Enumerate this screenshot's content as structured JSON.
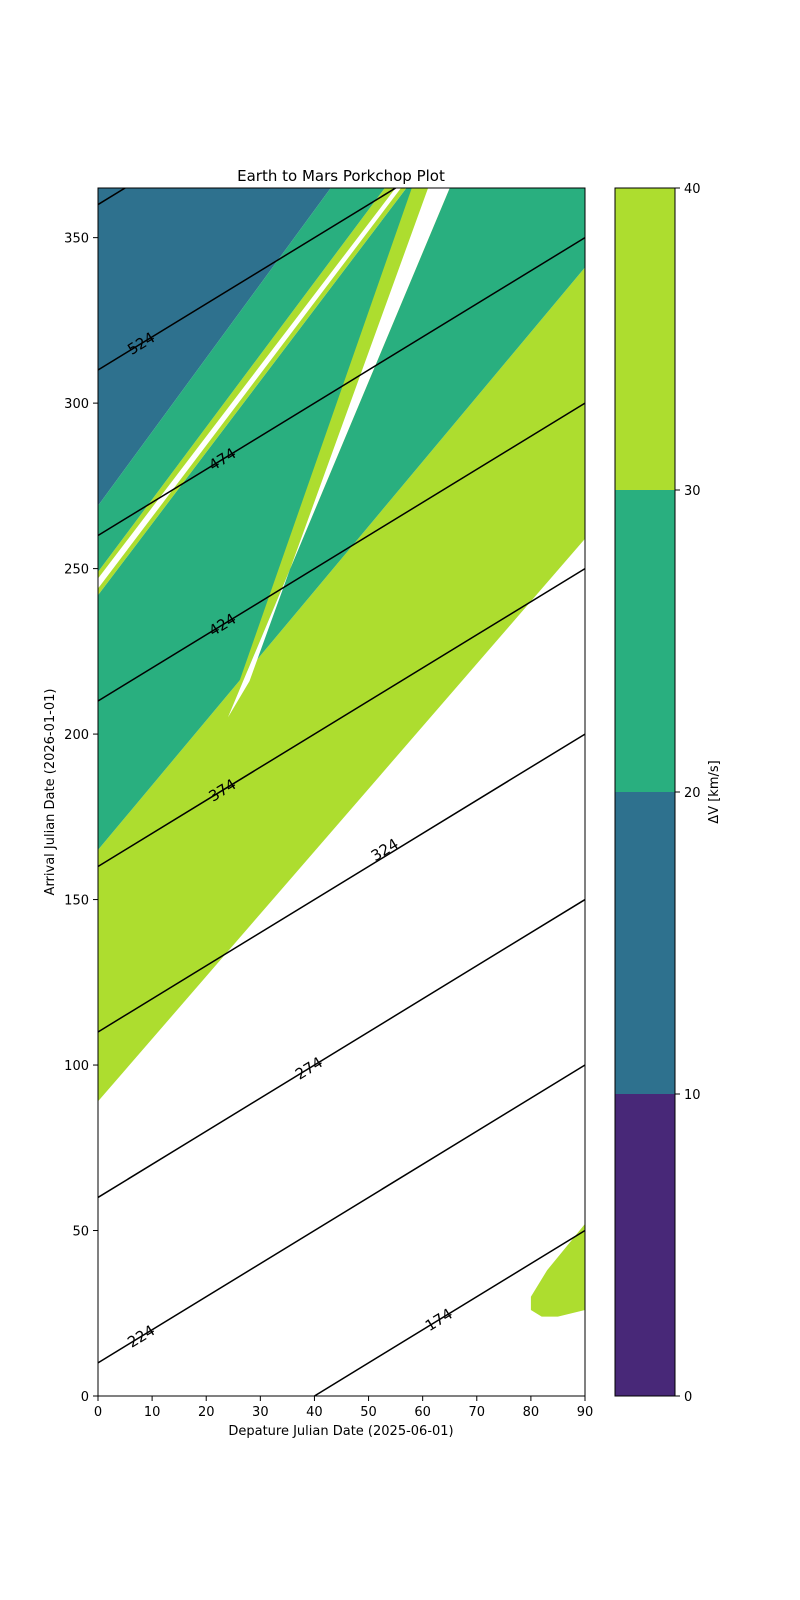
{
  "chart_data": {
    "type": "contour",
    "title": "Earth to Mars Porkchop Plot",
    "xlabel": "Depature Julian Date (2025-06-01)",
    "ylabel": "Arrival Julian Date (2026-01-01)",
    "xlim": [
      0,
      90
    ],
    "ylim": [
      0,
      365
    ],
    "xticks": [
      0,
      10,
      20,
      30,
      40,
      50,
      60,
      70,
      80,
      90
    ],
    "yticks": [
      0,
      50,
      100,
      150,
      200,
      250,
      300,
      350
    ],
    "grid": false,
    "colorbar": {
      "label": "ΔV [km/s]",
      "ticks": [
        0,
        10,
        20,
        30,
        40
      ],
      "levels": [
        {
          "from": 0,
          "to": 10,
          "color": "#482878"
        },
        {
          "from": 10,
          "to": 20,
          "color": "#2e718e"
        },
        {
          "from": 20,
          "to": 30,
          "color": "#29af7f"
        },
        {
          "from": 30,
          "to": 40,
          "color": "#addd2f"
        }
      ]
    },
    "filled_regions": [
      {
        "level": "30-40",
        "color": "#addd2f",
        "points": [
          [
            0,
            89
          ],
          [
            0,
            165
          ],
          [
            90,
            341
          ],
          [
            90,
            259
          ]
        ]
      },
      {
        "level": "20-30",
        "color": "#29af7f",
        "points": [
          [
            0,
            165
          ],
          [
            0,
            242
          ],
          [
            57,
            365
          ],
          [
            90,
            365
          ],
          [
            90,
            341
          ]
        ]
      },
      {
        "level": "10-20",
        "color": "#2e718e",
        "points": [
          [
            0,
            269
          ],
          [
            0,
            365
          ],
          [
            43,
            365
          ]
        ]
      },
      {
        "level": "30-40",
        "color": "#addd2f",
        "points": [
          [
            0,
            242
          ],
          [
            0,
            249
          ],
          [
            53,
            365
          ],
          [
            57,
            365
          ]
        ]
      },
      {
        "level": "none",
        "color": "#ffffff",
        "points": [
          [
            0,
            244
          ],
          [
            0,
            247
          ],
          [
            55,
            365
          ],
          [
            56,
            365
          ]
        ]
      },
      {
        "level": "20-30",
        "color": "#29af7f",
        "points": [
          [
            0,
            249
          ],
          [
            0,
            269
          ],
          [
            43,
            365
          ],
          [
            53,
            365
          ]
        ]
      },
      {
        "level": "30-40",
        "color": "#addd2f",
        "points": [
          [
            24,
            205
          ],
          [
            24,
            206
          ],
          [
            58,
            365
          ],
          [
            65,
            365
          ]
        ]
      },
      {
        "level": "none",
        "color": "#ffffff",
        "points": [
          [
            24,
            205
          ],
          [
            28,
            216
          ],
          [
            61,
            365
          ],
          [
            65,
            365
          ]
        ]
      },
      {
        "level": "30-40",
        "color": "#addd2f",
        "points": [
          [
            90,
            26
          ],
          [
            90,
            52
          ],
          [
            87,
            46
          ],
          [
            83,
            38
          ],
          [
            80,
            30
          ],
          [
            80,
            26
          ],
          [
            82,
            24
          ],
          [
            85,
            24
          ]
        ]
      }
    ],
    "contour_lines": [
      {
        "label": "174",
        "x": [
          40,
          90
        ],
        "y": [
          0,
          50
        ],
        "label_at": [
          63,
          23
        ]
      },
      {
        "label": "224",
        "x": [
          0,
          90
        ],
        "y": [
          10,
          100
        ],
        "label_at": [
          8,
          18
        ]
      },
      {
        "label": "274",
        "x": [
          0,
          90
        ],
        "y": [
          60,
          150
        ],
        "label_at": [
          39,
          99
        ]
      },
      {
        "label": "324",
        "x": [
          0,
          90
        ],
        "y": [
          110,
          200
        ],
        "label_at": [
          53,
          165
        ]
      },
      {
        "label": "374",
        "x": [
          0,
          90
        ],
        "y": [
          160,
          250
        ],
        "label_at": [
          23,
          183
        ]
      },
      {
        "label": "424",
        "x": [
          0,
          90
        ],
        "y": [
          210,
          300
        ],
        "label_at": [
          23,
          233
        ]
      },
      {
        "label": "474",
        "x": [
          0,
          90
        ],
        "y": [
          260,
          350
        ],
        "label_at": [
          23,
          283
        ]
      },
      {
        "label": "524",
        "x": [
          0,
          90
        ],
        "y": [
          310,
          400
        ],
        "label_at": [
          8,
          318
        ]
      },
      {
        "label": "",
        "x": [
          0,
          90
        ],
        "y": [
          360,
          450
        ],
        "label_at": null
      }
    ]
  }
}
